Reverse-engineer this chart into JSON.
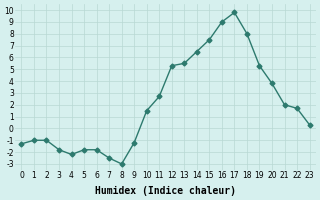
{
  "x": [
    0,
    1,
    2,
    3,
    4,
    5,
    6,
    7,
    8,
    9,
    10,
    11,
    12,
    13,
    14,
    15,
    16,
    17,
    18,
    19,
    20,
    21,
    22,
    23
  ],
  "y": [
    -1.3,
    -1.0,
    -1.0,
    -1.8,
    -2.2,
    -1.8,
    -1.8,
    -2.5,
    -3.0,
    -1.2,
    1.5,
    2.7,
    5.3,
    5.5,
    6.5,
    7.5,
    9.0,
    9.8,
    8.0,
    5.3,
    3.8,
    2.0,
    1.7,
    0.3
  ],
  "line_color": "#2d7a6e",
  "marker": "D",
  "markersize": 2.5,
  "linewidth": 1.0,
  "xlabel": "Humidex (Indice chaleur)",
  "xlabel_fontsize": 7,
  "ylabel_ticks": [
    "-3",
    "-2",
    "-1",
    "0",
    "1",
    "2",
    "3",
    "4",
    "5",
    "6",
    "7",
    "8",
    "9",
    "10"
  ],
  "yticks": [
    -3,
    -2,
    -1,
    0,
    1,
    2,
    3,
    4,
    5,
    6,
    7,
    8,
    9,
    10
  ],
  "ylim": [
    -3.5,
    10.5
  ],
  "xlim": [
    -0.5,
    23.5
  ],
  "background_color": "#d6f0ee",
  "grid_color": "#b8d8d4",
  "tick_fontsize": 5.5
}
